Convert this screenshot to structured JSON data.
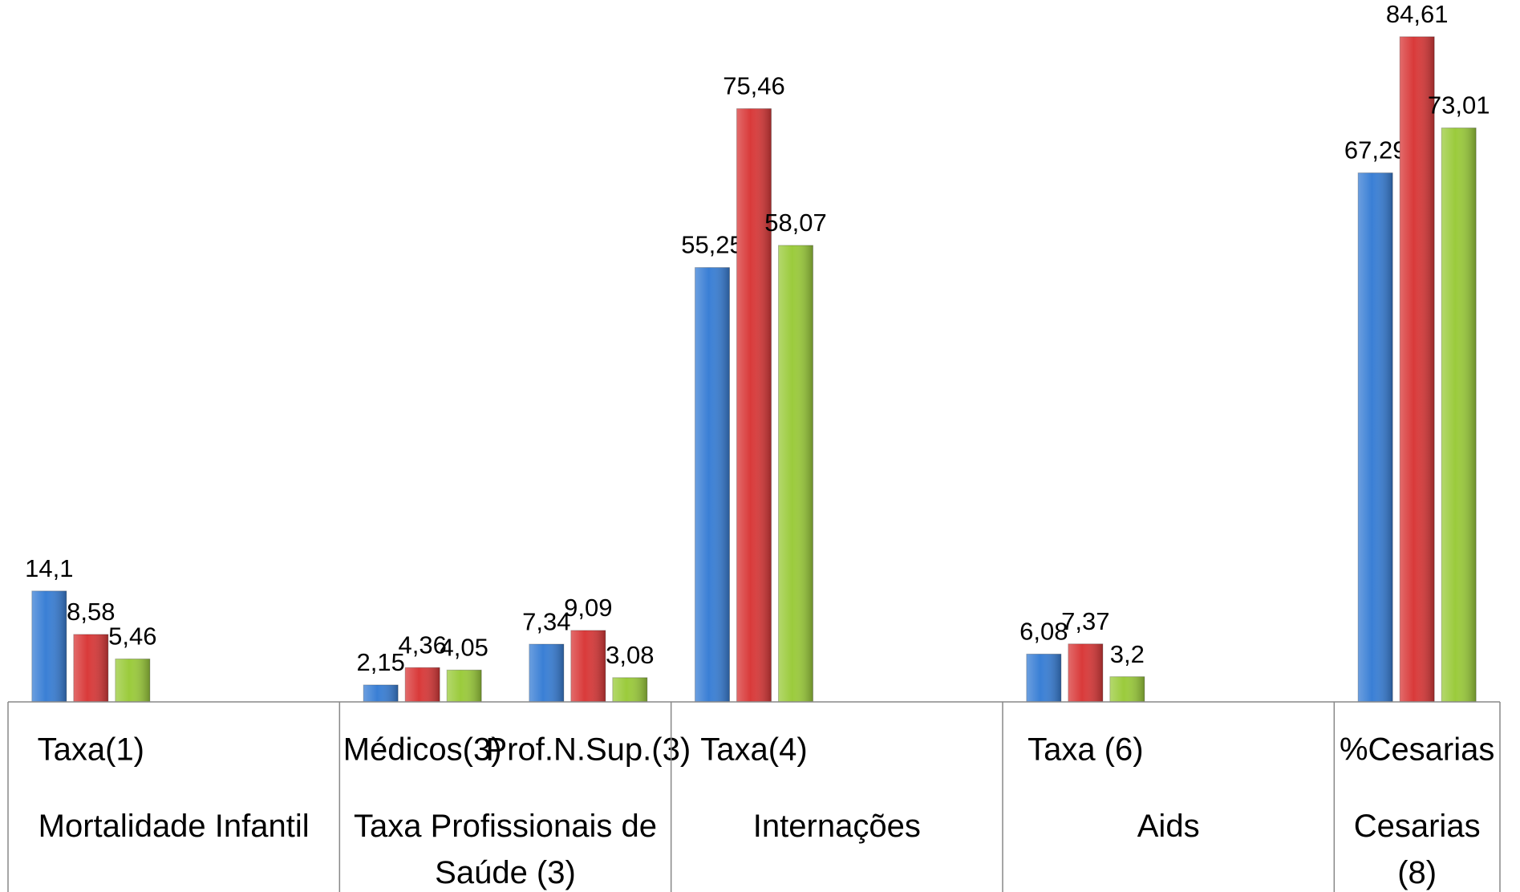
{
  "chart_data": {
    "type": "bar",
    "categories": [
      "Taxa(1)",
      null,
      "Médicos(3)",
      "Prof.N.Sup.(3)",
      "Taxa(4)",
      null,
      "Taxa (6)",
      null,
      "%Cesarias"
    ],
    "category_groups": [
      "Mortalidade Infantil",
      "Taxa Profissionais de Saúde (3)",
      "Internações",
      "Aids",
      "Cesarias (8)"
    ],
    "series": [
      {
        "color": "#3a7fd5",
        "values": [
          14.1,
          null,
          2.15,
          7.34,
          55.25,
          null,
          6.08,
          null,
          67.29
        ],
        "value_labels": [
          "14,1",
          null,
          "2,15",
          "7,34",
          "55,25",
          null,
          "6,08",
          null,
          "67,29"
        ]
      },
      {
        "color": "#d93a3a",
        "values": [
          8.58,
          null,
          4.36,
          9.09,
          75.46,
          null,
          7.37,
          null,
          84.61
        ],
        "value_labels": [
          "8,58",
          null,
          "4,36",
          "9,09",
          "75,46",
          null,
          "7,37",
          null,
          "84,61"
        ]
      },
      {
        "color": "#9bcb3c",
        "values": [
          5.46,
          null,
          4.05,
          3.08,
          58.07,
          null,
          3.2,
          null,
          73.01
        ],
        "value_labels": [
          "5,46",
          null,
          "4,05",
          "3,08",
          "58,07",
          null,
          "3,2",
          null,
          "73,01"
        ]
      }
    ],
    "ylim": [
      0,
      90
    ]
  }
}
